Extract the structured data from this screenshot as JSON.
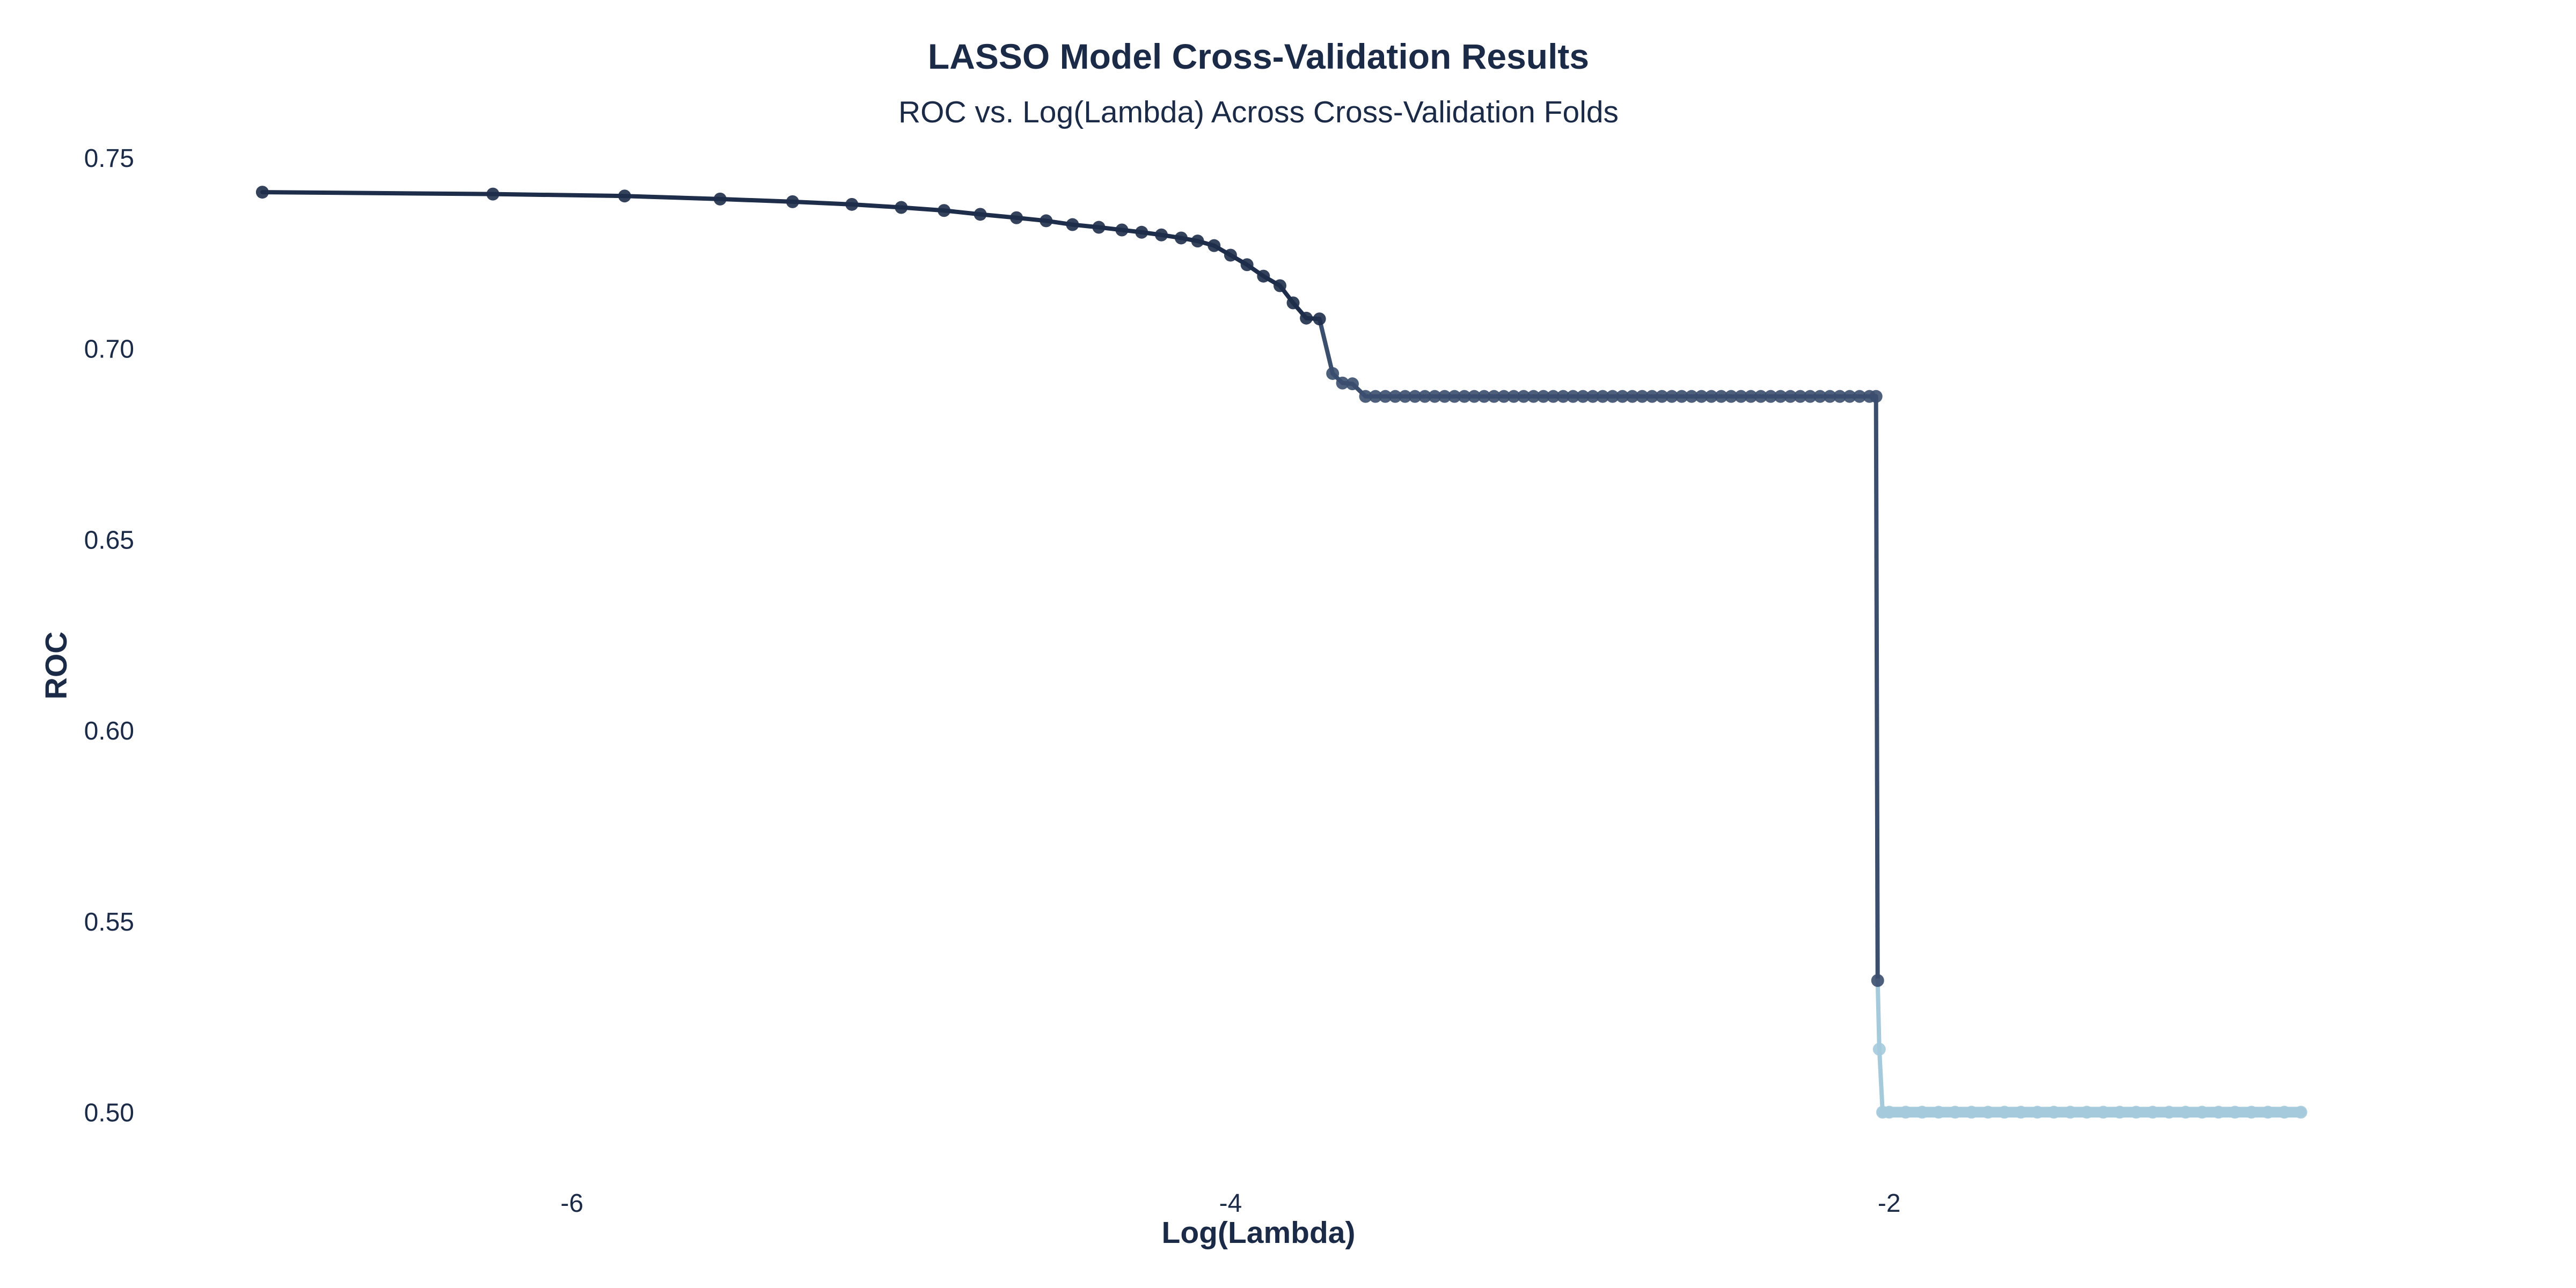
{
  "chart_data": {
    "type": "line",
    "title": "LASSO Model Cross-Validation Results",
    "subtitle": "ROC vs. Log(Lambda) Across Cross-Validation Folds",
    "xlabel": "Log(Lambda)",
    "ylabel": "ROC",
    "xlim": [
      -7.15,
      -0.55
    ],
    "ylim": [
      0.4905,
      0.7576
    ],
    "xticks": [
      -6,
      -4,
      -2
    ],
    "xtick_labels": [
      "-6",
      "-4",
      "-2"
    ],
    "yticks": [
      0.5,
      0.55,
      0.6,
      0.65,
      0.7,
      0.75
    ],
    "ytick_labels": [
      "0.50",
      "0.55",
      "0.60",
      "0.65",
      "0.70",
      "0.75"
    ],
    "grid": false,
    "legend": "none",
    "colors": {
      "text": "#1b2a47",
      "high_roc": "#1e2d4a",
      "mid_roc": "#3b4e6e",
      "low_roc": "#a4cadb"
    },
    "points": {
      "x": [
        -6.94,
        -6.24,
        -5.84,
        -5.55,
        -5.33,
        -5.15,
        -5.0,
        -4.87,
        -4.76,
        -4.65,
        -4.56,
        -4.48,
        -4.4,
        -4.33,
        -4.27,
        -4.21,
        -4.15,
        -4.1,
        -4.05,
        -4.0,
        -3.95,
        -3.9,
        -3.85,
        -3.81,
        -3.77,
        -3.73,
        -3.69,
        -3.66,
        -3.63,
        -3.59,
        -3.56,
        -3.53,
        -3.5,
        -3.47,
        -3.44,
        -3.41,
        -3.38,
        -3.35,
        -3.32,
        -3.29,
        -3.26,
        -3.23,
        -3.2,
        -3.17,
        -3.14,
        -3.11,
        -3.08,
        -3.05,
        -3.02,
        -2.99,
        -2.96,
        -2.93,
        -2.9,
        -2.87,
        -2.84,
        -2.81,
        -2.78,
        -2.75,
        -2.72,
        -2.69,
        -2.66,
        -2.63,
        -2.6,
        -2.57,
        -2.54,
        -2.51,
        -2.48,
        -2.45,
        -2.42,
        -2.39,
        -2.36,
        -2.33,
        -2.3,
        -2.27,
        -2.24,
        -2.21,
        -2.18,
        -2.15,
        -2.12,
        -2.09,
        -2.06,
        -2.04,
        -2.035,
        -2.03,
        -2.02,
        -2.0,
        -1.95,
        -1.9,
        -1.85,
        -1.8,
        -1.75,
        -1.7,
        -1.65,
        -1.6,
        -1.55,
        -1.5,
        -1.45,
        -1.4,
        -1.35,
        -1.3,
        -1.25,
        -1.2,
        -1.15,
        -1.1,
        -1.05,
        -1.0,
        -0.95,
        -0.9,
        -0.85,
        -0.8,
        -0.75
      ],
      "y": [
        0.741,
        0.7405,
        0.74,
        0.7392,
        0.7385,
        0.7378,
        0.737,
        0.7362,
        0.7352,
        0.7343,
        0.7335,
        0.7325,
        0.7318,
        0.7311,
        0.7305,
        0.7298,
        0.729,
        0.7282,
        0.727,
        0.7245,
        0.722,
        0.719,
        0.7165,
        0.712,
        0.708,
        0.7078,
        0.6935,
        0.691,
        0.6908,
        0.6875,
        0.6875,
        0.6875,
        0.6875,
        0.6875,
        0.6875,
        0.6875,
        0.6875,
        0.6875,
        0.6875,
        0.6875,
        0.6875,
        0.6875,
        0.6875,
        0.6875,
        0.6875,
        0.6875,
        0.6875,
        0.6875,
        0.6875,
        0.6875,
        0.6875,
        0.6875,
        0.6875,
        0.6875,
        0.6875,
        0.6875,
        0.6875,
        0.6875,
        0.6875,
        0.6875,
        0.6875,
        0.6875,
        0.6875,
        0.6875,
        0.6875,
        0.6875,
        0.6875,
        0.6875,
        0.6875,
        0.6875,
        0.6875,
        0.6875,
        0.6875,
        0.6875,
        0.6875,
        0.6875,
        0.6875,
        0.6875,
        0.6875,
        0.6875,
        0.6875,
        0.6875,
        0.5345,
        0.5165,
        0.5,
        0.5,
        0.5,
        0.5,
        0.5,
        0.5,
        0.5,
        0.5,
        0.5,
        0.5,
        0.5,
        0.5,
        0.5,
        0.5,
        0.5,
        0.5,
        0.5,
        0.5,
        0.5,
        0.5,
        0.5,
        0.5,
        0.5,
        0.5,
        0.5,
        0.5,
        0.5
      ]
    }
  }
}
